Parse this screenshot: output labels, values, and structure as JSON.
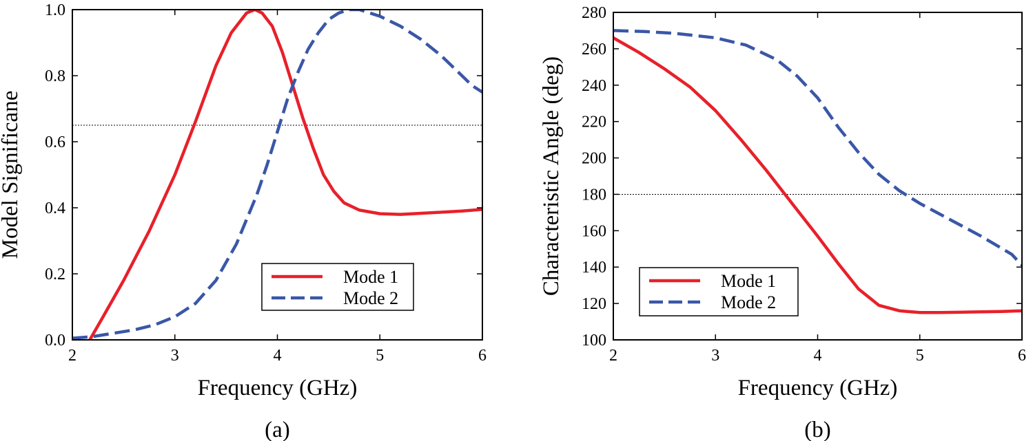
{
  "chart_data": [
    {
      "type": "line",
      "caption": "(a)",
      "xlabel": "Frequency (GHz)",
      "ylabel": "Model Significane",
      "xlim": [
        2,
        6
      ],
      "ylim": [
        0,
        1
      ],
      "xticks": [
        "2",
        "3",
        "4",
        "5",
        "6"
      ],
      "yticks": [
        "0.0",
        "0.2",
        "0.4",
        "0.6",
        "0.8",
        "1.0"
      ],
      "grid": false,
      "legend_position": "bottom-right",
      "reference_line": 0.65,
      "series": [
        {
          "name": "Mode 1",
          "color": "#e8202a",
          "style": "solid",
          "x": [
            2.17,
            2.3,
            2.5,
            2.75,
            3.0,
            3.2,
            3.4,
            3.55,
            3.7,
            3.78,
            3.85,
            3.95,
            4.05,
            4.15,
            4.25,
            4.35,
            4.45,
            4.55,
            4.65,
            4.8,
            5.0,
            5.2,
            5.5,
            5.8,
            6.0
          ],
          "y": [
            0.0,
            0.07,
            0.18,
            0.33,
            0.5,
            0.66,
            0.83,
            0.93,
            0.99,
            1.0,
            0.99,
            0.95,
            0.87,
            0.77,
            0.67,
            0.58,
            0.5,
            0.45,
            0.415,
            0.393,
            0.382,
            0.38,
            0.385,
            0.39,
            0.395
          ]
        },
        {
          "name": "Mode 2",
          "color": "#3a57a7",
          "style": "dashed",
          "x": [
            2.0,
            2.2,
            2.4,
            2.6,
            2.8,
            3.0,
            3.2,
            3.4,
            3.6,
            3.8,
            3.9,
            4.0,
            4.1,
            4.2,
            4.3,
            4.4,
            4.5,
            4.6,
            4.7,
            4.8,
            4.9,
            5.0,
            5.2,
            5.4,
            5.6,
            5.8,
            5.9,
            6.0
          ],
          "y": [
            0.005,
            0.01,
            0.02,
            0.03,
            0.045,
            0.07,
            0.11,
            0.18,
            0.29,
            0.44,
            0.53,
            0.63,
            0.73,
            0.81,
            0.88,
            0.93,
            0.97,
            0.99,
            1.0,
            1.0,
            0.99,
            0.98,
            0.95,
            0.91,
            0.86,
            0.8,
            0.77,
            0.75
          ]
        }
      ]
    },
    {
      "type": "line",
      "caption": "(b)",
      "xlabel": "Frequency (GHz)",
      "ylabel": "Characteristic Angle (deg)",
      "xlim": [
        2,
        6
      ],
      "ylim": [
        100,
        280
      ],
      "xticks": [
        "2",
        "3",
        "4",
        "5",
        "6"
      ],
      "yticks": [
        "100",
        "120",
        "140",
        "160",
        "180",
        "200",
        "220",
        "240",
        "260",
        "280"
      ],
      "grid": false,
      "legend_position": "bottom-left",
      "reference_line": 180,
      "series": [
        {
          "name": "Mode 1",
          "color": "#e8202a",
          "style": "solid",
          "x": [
            2.0,
            2.25,
            2.5,
            2.75,
            3.0,
            3.25,
            3.5,
            3.75,
            4.0,
            4.2,
            4.4,
            4.6,
            4.8,
            5.0,
            5.2,
            5.5,
            5.8,
            6.0
          ],
          "y": [
            266,
            258,
            249,
            239,
            226,
            210,
            193,
            175,
            157,
            142,
            128,
            119,
            116,
            115,
            115,
            115.3,
            115.6,
            116
          ]
        },
        {
          "name": "Mode 2",
          "color": "#3a57a7",
          "style": "dashed",
          "x": [
            2.0,
            2.3,
            2.6,
            3.0,
            3.3,
            3.6,
            3.8,
            4.0,
            4.2,
            4.4,
            4.6,
            4.8,
            5.0,
            5.3,
            5.6,
            5.9,
            6.0
          ],
          "y": [
            270,
            269.5,
            268.5,
            266,
            262,
            254,
            245,
            233,
            217,
            203,
            191,
            182,
            175,
            166,
            157,
            147,
            141
          ]
        }
      ]
    }
  ]
}
